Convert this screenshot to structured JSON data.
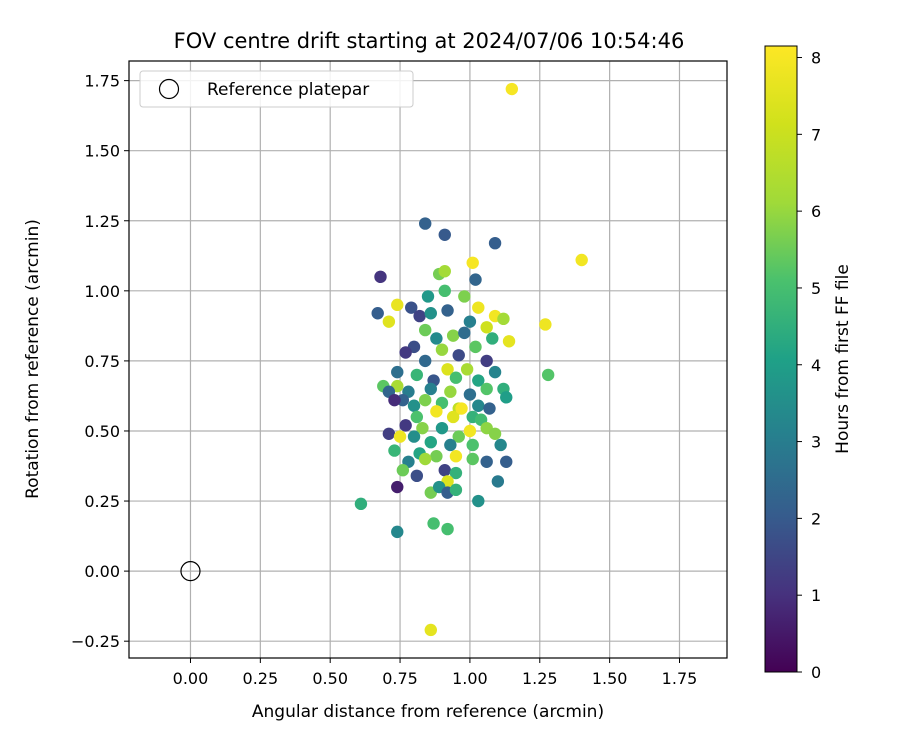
{
  "chart_data": {
    "type": "scatter",
    "title": "FOV centre drift starting at 2024/07/06 10:54:46",
    "xlabel": "Angular distance from reference (arcmin)",
    "ylabel": "Rotation from reference (arcmin)",
    "xlim": [
      -0.22,
      1.92
    ],
    "ylim": [
      -0.31,
      1.82
    ],
    "x_ticks": [
      0.0,
      0.25,
      0.5,
      0.75,
      1.0,
      1.25,
      1.5,
      1.75
    ],
    "x_tick_labels": [
      "0.00",
      "0.25",
      "0.50",
      "0.75",
      "1.00",
      "1.25",
      "1.50",
      "1.75"
    ],
    "y_ticks": [
      -0.25,
      0.0,
      0.25,
      0.5,
      0.75,
      1.0,
      1.25,
      1.5,
      1.75
    ],
    "y_tick_labels": [
      "−0.25",
      "0.00",
      "0.25",
      "0.50",
      "0.75",
      "1.00",
      "1.25",
      "1.50",
      "1.75"
    ],
    "grid": true,
    "legend": {
      "placement": "upper-left",
      "entries": [
        "Reference platepar"
      ]
    },
    "reference_point": {
      "x": 0.0,
      "y": 0.0,
      "label": "Reference platepar"
    },
    "colorbar": {
      "label": "Hours from first FF file",
      "colormap": "viridis",
      "range": [
        0,
        8.15
      ],
      "ticks": [
        0,
        1,
        2,
        3,
        4,
        5,
        6,
        7,
        8
      ],
      "tick_labels": [
        "0",
        "1",
        "2",
        "3",
        "4",
        "5",
        "6",
        "7",
        "8"
      ]
    },
    "points": [
      [
        1.15,
        1.72,
        8.0
      ],
      [
        1.4,
        1.11,
        7.9
      ],
      [
        1.01,
        1.1,
        8.0
      ],
      [
        1.27,
        0.88,
        7.8
      ],
      [
        0.86,
        -0.21,
        7.6
      ],
      [
        1.28,
        0.7,
        5.2
      ],
      [
        0.61,
        0.24,
        4.5
      ],
      [
        0.74,
        0.14,
        3.3
      ],
      [
        0.84,
        1.24,
        2.2
      ],
      [
        0.91,
        1.2,
        2.0
      ],
      [
        1.09,
        1.17,
        2.1
      ],
      [
        0.68,
        1.05,
        1.1
      ],
      [
        0.67,
        0.92,
        2.1
      ],
      [
        0.89,
        1.06,
        5.6
      ],
      [
        0.91,
        1.07,
        6.2
      ],
      [
        1.02,
        1.04,
        2.3
      ],
      [
        0.85,
        0.98,
        3.8
      ],
      [
        0.91,
        1.0,
        5.0
      ],
      [
        0.98,
        0.98,
        5.7
      ],
      [
        0.79,
        0.94,
        1.8
      ],
      [
        0.82,
        0.91,
        1.4
      ],
      [
        0.86,
        0.92,
        3.6
      ],
      [
        0.92,
        0.93,
        2.2
      ],
      [
        0.74,
        0.95,
        7.7
      ],
      [
        0.71,
        0.89,
        7.5
      ],
      [
        1.03,
        0.94,
        7.8
      ],
      [
        1.09,
        0.91,
        7.9
      ],
      [
        1.12,
        0.9,
        6.2
      ],
      [
        1.06,
        0.87,
        7.1
      ],
      [
        0.84,
        0.86,
        5.5
      ],
      [
        1.0,
        0.89,
        3.1
      ],
      [
        0.88,
        0.83,
        3.4
      ],
      [
        0.94,
        0.84,
        5.8
      ],
      [
        0.98,
        0.85,
        2.5
      ],
      [
        1.08,
        0.83,
        4.5
      ],
      [
        1.14,
        0.82,
        7.6
      ],
      [
        0.8,
        0.8,
        1.7
      ],
      [
        0.9,
        0.79,
        6.0
      ],
      [
        0.96,
        0.77,
        1.6
      ],
      [
        1.02,
        0.8,
        5.3
      ],
      [
        0.77,
        0.78,
        1.2
      ],
      [
        0.84,
        0.75,
        2.4
      ],
      [
        1.06,
        0.75,
        1.3
      ],
      [
        0.92,
        0.72,
        7.4
      ],
      [
        0.99,
        0.72,
        6.3
      ],
      [
        1.09,
        0.71,
        3.2
      ],
      [
        0.74,
        0.71,
        2.6
      ],
      [
        0.81,
        0.7,
        4.7
      ],
      [
        0.87,
        0.68,
        1.9
      ],
      [
        0.95,
        0.69,
        5.0
      ],
      [
        1.03,
        0.68,
        4.2
      ],
      [
        0.69,
        0.66,
        5.3
      ],
      [
        0.74,
        0.66,
        6.3
      ],
      [
        0.78,
        0.64,
        3.0
      ],
      [
        0.86,
        0.65,
        3.1
      ],
      [
        0.93,
        0.64,
        6.0
      ],
      [
        1.0,
        0.63,
        2.6
      ],
      [
        1.06,
        0.65,
        5.2
      ],
      [
        1.12,
        0.65,
        4.5
      ],
      [
        1.13,
        0.62,
        4.0
      ],
      [
        0.71,
        0.64,
        2.3
      ],
      [
        0.76,
        0.61,
        2.2
      ],
      [
        0.73,
        0.61,
        0.9
      ],
      [
        0.8,
        0.59,
        3.6
      ],
      [
        0.84,
        0.61,
        5.7
      ],
      [
        0.9,
        0.6,
        5.0
      ],
      [
        0.96,
        0.58,
        6.8
      ],
      [
        1.03,
        0.59,
        3.3
      ],
      [
        1.07,
        0.58,
        2.2
      ],
      [
        0.81,
        0.55,
        5.1
      ],
      [
        0.88,
        0.57,
        7.9
      ],
      [
        0.94,
        0.55,
        7.5
      ],
      [
        0.97,
        0.58,
        8.0
      ],
      [
        1.01,
        0.55,
        4.6
      ],
      [
        1.04,
        0.54,
        4.9
      ],
      [
        0.77,
        0.52,
        1.2
      ],
      [
        0.83,
        0.51,
        5.8
      ],
      [
        0.9,
        0.51,
        3.8
      ],
      [
        0.96,
        0.48,
        5.5
      ],
      [
        1.0,
        0.5,
        7.9
      ],
      [
        1.06,
        0.51,
        5.9
      ],
      [
        1.09,
        0.49,
        5.8
      ],
      [
        0.71,
        0.49,
        1.3
      ],
      [
        0.75,
        0.48,
        7.8
      ],
      [
        0.8,
        0.48,
        3.5
      ],
      [
        0.86,
        0.46,
        4.2
      ],
      [
        0.93,
        0.45,
        3.1
      ],
      [
        1.01,
        0.45,
        5.1
      ],
      [
        1.11,
        0.45,
        3.3
      ],
      [
        0.73,
        0.43,
        4.7
      ],
      [
        0.82,
        0.42,
        4.2
      ],
      [
        0.88,
        0.41,
        5.6
      ],
      [
        0.95,
        0.41,
        7.9
      ],
      [
        1.01,
        0.4,
        5.3
      ],
      [
        1.06,
        0.39,
        2.2
      ],
      [
        1.13,
        0.39,
        2.1
      ],
      [
        0.78,
        0.39,
        3.1
      ],
      [
        0.84,
        0.4,
        6.1
      ],
      [
        0.76,
        0.36,
        5.5
      ],
      [
        0.91,
        0.36,
        1.4
      ],
      [
        0.95,
        0.35,
        4.6
      ],
      [
        1.1,
        0.32,
        2.9
      ],
      [
        0.81,
        0.34,
        1.7
      ],
      [
        0.92,
        0.32,
        7.4
      ],
      [
        0.74,
        0.3,
        0.6
      ],
      [
        0.86,
        0.28,
        5.6
      ],
      [
        0.89,
        0.3,
        3.6
      ],
      [
        0.92,
        0.28,
        2.1
      ],
      [
        0.95,
        0.29,
        4.6
      ],
      [
        1.03,
        0.25,
        3.6
      ],
      [
        0.87,
        0.17,
        5.0
      ],
      [
        0.92,
        0.15,
        5.0
      ]
    ]
  }
}
